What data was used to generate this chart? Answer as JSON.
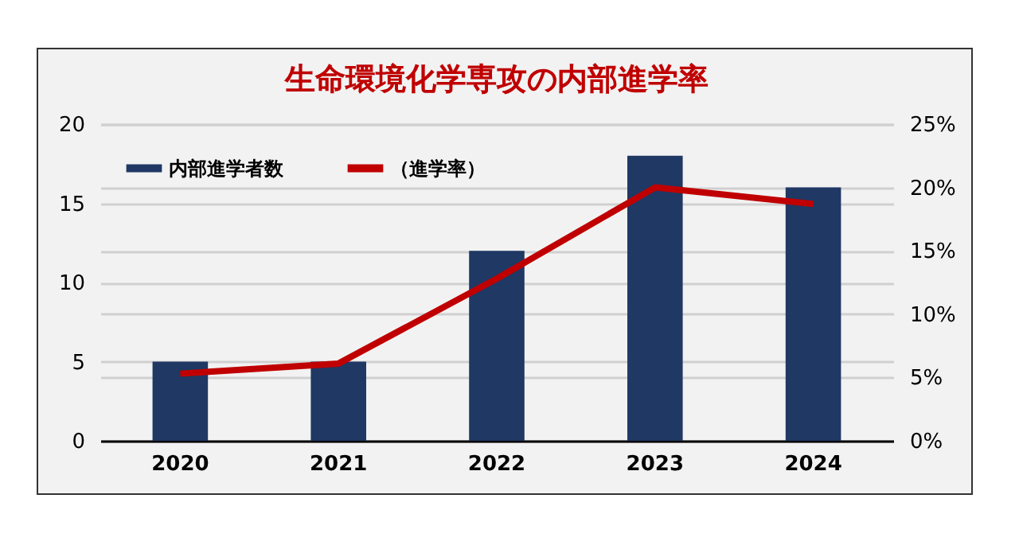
{
  "chart_data": {
    "type": "bar",
    "title": "生命環境化学専攻の内部進学率",
    "categories": [
      "2020",
      "2021",
      "2022",
      "2023",
      "2024"
    ],
    "series": [
      {
        "name": "内部進学者数",
        "color": "#1f3864",
        "values": [
          5,
          5,
          12,
          18,
          16
        ]
      },
      {
        "name": "（進学率）",
        "type": "line",
        "axis": "y2",
        "color": "#c00000",
        "values": [
          5.3,
          6.1,
          12.8,
          20,
          18.7
        ]
      }
    ],
    "ylim": [
      0,
      20
    ],
    "yticks": [
      0,
      5,
      10,
      15,
      20
    ],
    "y2lim": [
      0,
      25
    ],
    "y2ticks": [
      {
        "value": 0,
        "label": "0%"
      },
      {
        "value": 5,
        "label": "5%"
      },
      {
        "value": 10,
        "label": "10%"
      },
      {
        "value": 15,
        "label": "15%"
      },
      {
        "value": 20,
        "label": "20%"
      },
      {
        "value": 25,
        "label": "25%"
      }
    ],
    "grid": true,
    "legend": "top left"
  }
}
